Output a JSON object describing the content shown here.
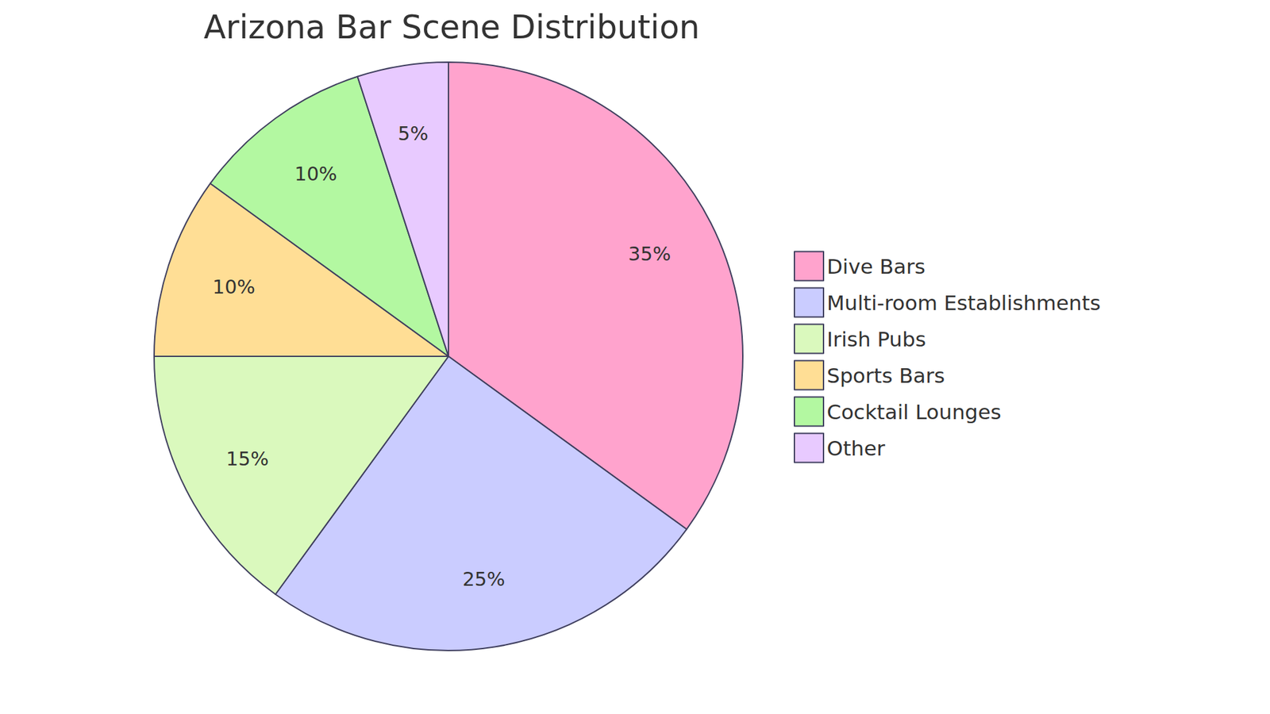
{
  "chart_data": {
    "type": "pie",
    "title": "Arizona Bar Scene Distribution",
    "categories": [
      "Dive Bars",
      "Multi-room Establishments",
      "Irish Pubs",
      "Sports Bars",
      "Cocktail Lounges",
      "Other"
    ],
    "values": [
      35,
      25,
      15,
      10,
      10,
      5
    ],
    "value_labels": [
      "35%",
      "25%",
      "15%",
      "10%",
      "10%",
      "5%"
    ],
    "colors": [
      "#FFA3CD",
      "#CACCFF",
      "#DAF9BD",
      "#FFDE95",
      "#B3F8A1",
      "#E8CAFF"
    ],
    "data_labels": true,
    "legend": "right"
  }
}
